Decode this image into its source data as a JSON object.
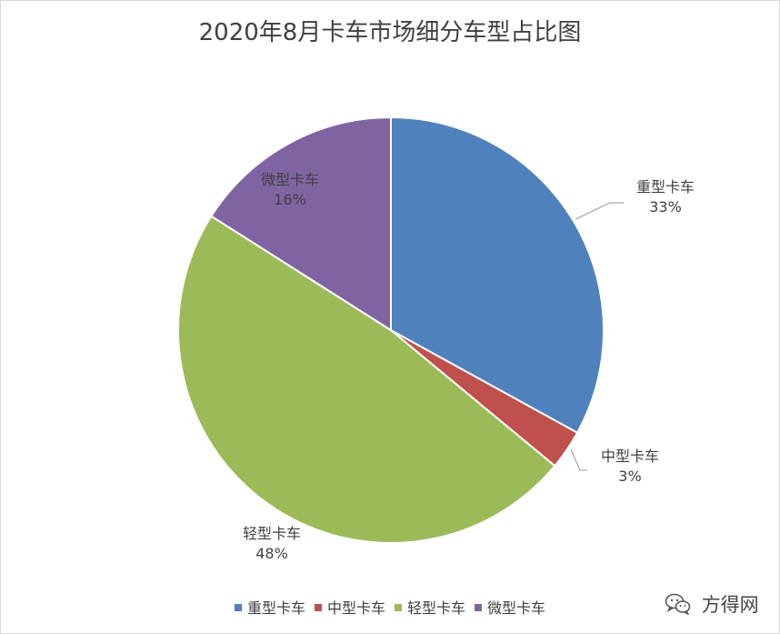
{
  "chart_data": {
    "type": "pie",
    "title": "2020年8月卡车市场细分车型占比图",
    "slices": [
      {
        "name": "重型卡车",
        "value": 33,
        "label": "33%",
        "color": "#4f81bd"
      },
      {
        "name": "中型卡车",
        "value": 3,
        "label": "3%",
        "color": "#c0504d"
      },
      {
        "name": "轻型卡车",
        "value": 48,
        "label": "48%",
        "color": "#9bbb59"
      },
      {
        "name": "微型卡车",
        "value": 16,
        "label": "16%",
        "color": "#8064a2"
      }
    ],
    "legend_position": "bottom"
  },
  "watermark": {
    "text": "方得网",
    "icon": "wechat-icon"
  }
}
